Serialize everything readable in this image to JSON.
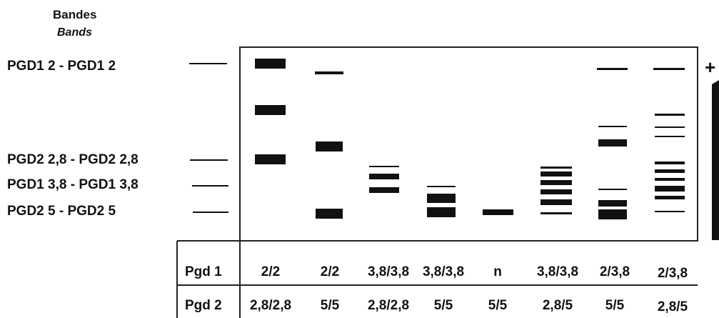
{
  "header": {
    "title": "Bandes",
    "subtitle": "Bands"
  },
  "band_labels": [
    "PGD1 2 - PGD1 2",
    "PGD2 2,8 - PGD2 2,8",
    "PGD1 3,8 - PGD1 3,8",
    "PGD2 5  - PGD2 5"
  ],
  "polarity": {
    "positive": "+"
  },
  "table": {
    "rows": [
      {
        "label": "Pgd 1",
        "values": [
          "2/2",
          "2/2",
          "3,8/3,8",
          "3,8/3,8",
          "n",
          "3,8/3,8",
          "2/3,8",
          "2/3,8"
        ]
      },
      {
        "label": "Pgd 2",
        "values": [
          "2,8/2,8",
          "5/5",
          "2,8/2,8",
          "5/5",
          "5/5",
          "2,8/5",
          "5/5",
          "2,8/5"
        ]
      }
    ]
  }
}
